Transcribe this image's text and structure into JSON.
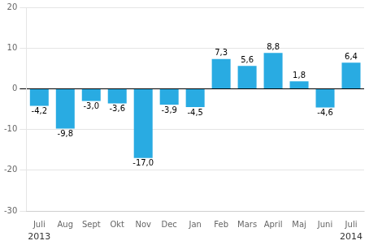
{
  "chart_data": {
    "type": "bar",
    "categories": [
      "Juli",
      "Aug",
      "Sept",
      "Okt",
      "Nov",
      "Dec",
      "Jan",
      "Feb",
      "Mars",
      "April",
      "Maj",
      "Juni",
      "Juli"
    ],
    "values": [
      -4.2,
      -9.8,
      -3.0,
      -3.6,
      -17.0,
      -3.9,
      -4.5,
      7.3,
      5.6,
      8.8,
      1.8,
      -4.6,
      6.4
    ],
    "value_labels": [
      "-4,2",
      "-9,8",
      "-3,0",
      "-3,6",
      "-17,0",
      "-3,9",
      "-4,5",
      "7,3",
      "5,6",
      "8,8",
      "1,8",
      "-4,6",
      "6,4"
    ],
    "data_labels": true,
    "color": "#29ABE2",
    "ylim": [
      -30,
      20
    ],
    "yticks": [
      -30,
      -20,
      -10,
      0,
      10,
      20
    ],
    "grid": true,
    "annotations": [
      {
        "text": "2013",
        "x": 0
      },
      {
        "text": "2014",
        "x": 12
      }
    ]
  }
}
